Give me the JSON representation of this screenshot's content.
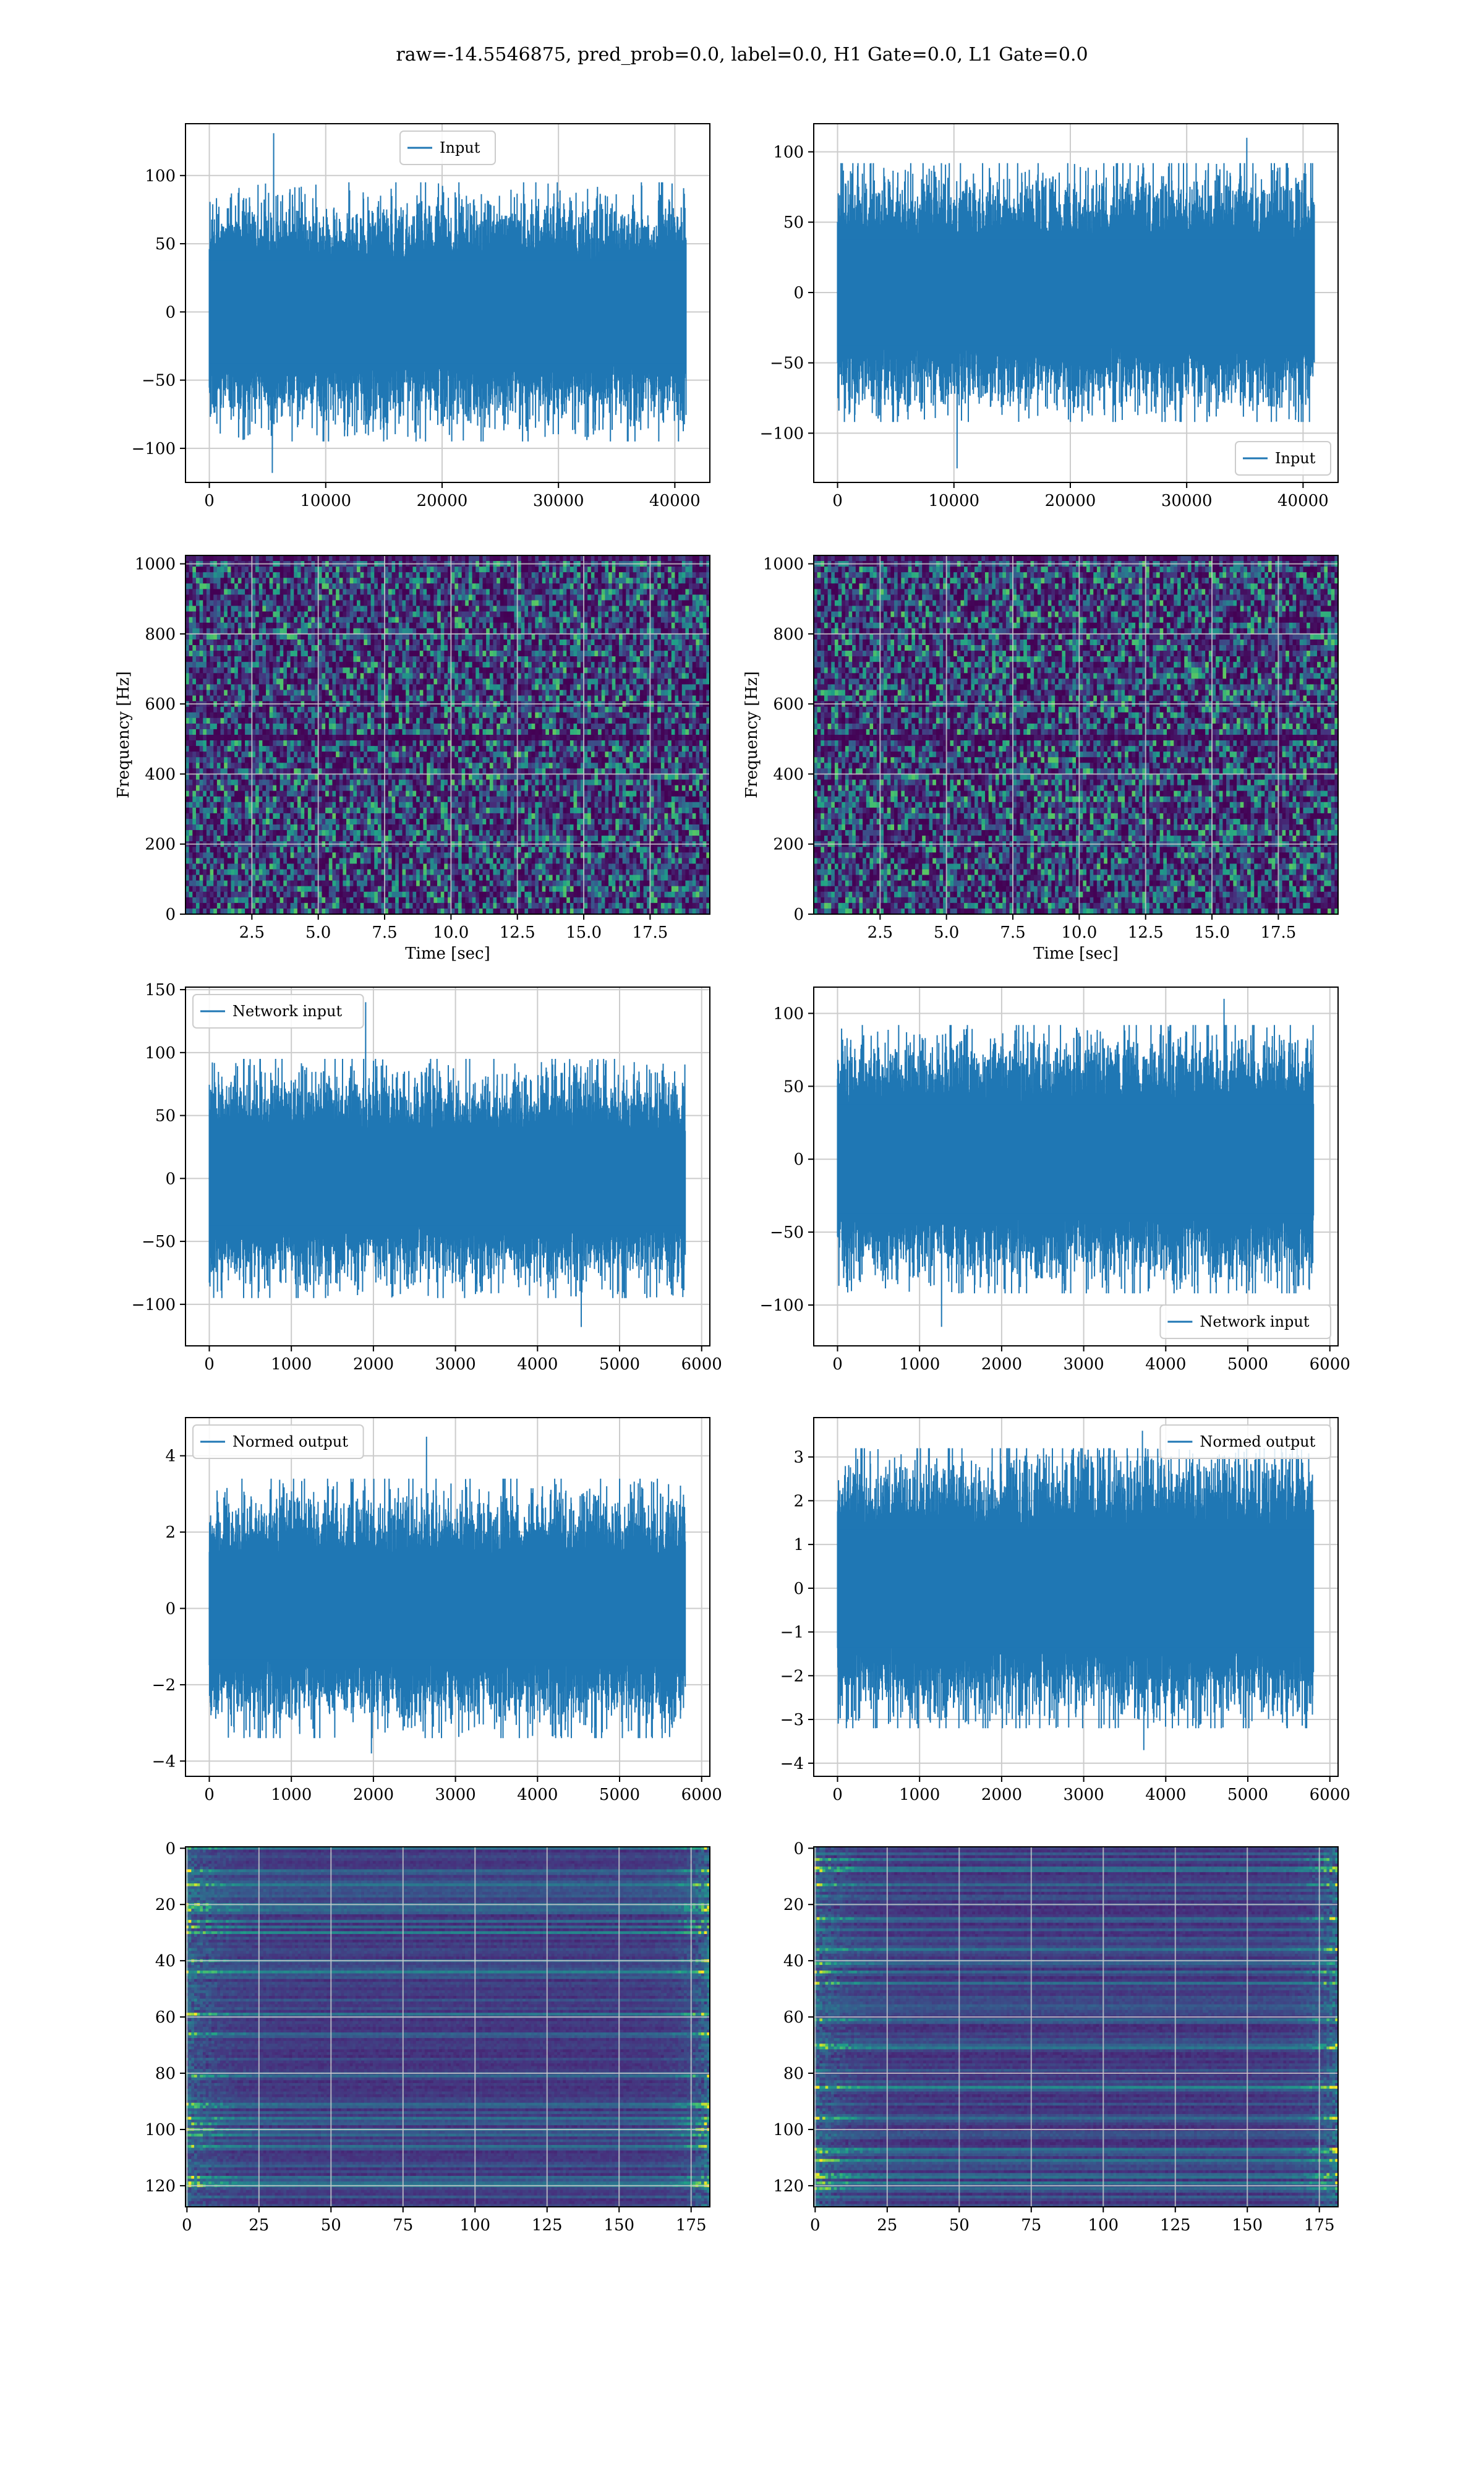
{
  "figure_title": "raw=-14.5546875, pred_prob=0.0, label=0.0, H1 Gate=0.0, L1 Gate=0.0",
  "colors": {
    "line": "#1f77b4",
    "grid": "#cccccc",
    "viridis": [
      "#440154",
      "#46327e",
      "#365c8d",
      "#277f8e",
      "#1fa187",
      "#4ac16d",
      "#a0da39",
      "#fde725"
    ]
  },
  "chart_data": [
    {
      "type": "line",
      "row": 1,
      "col": 1,
      "series": [
        {
          "name": "Input"
        }
      ],
      "legend": "upper center",
      "xlim": [
        -2048,
        43008
      ],
      "ylim": [
        -125,
        138
      ],
      "xticks": [
        0,
        10000,
        20000,
        30000,
        40000
      ],
      "yticks": [
        -100,
        -50,
        0,
        50,
        100
      ],
      "x_range": [
        0,
        40960
      ],
      "envelope": [
        -95,
        95
      ],
      "peaks": [
        131,
        -118
      ],
      "noise_scale": 25
    },
    {
      "type": "line",
      "row": 1,
      "col": 2,
      "series": [
        {
          "name": "Input"
        }
      ],
      "legend": "lower right",
      "xlim": [
        -2048,
        43008
      ],
      "ylim": [
        -135,
        120
      ],
      "xticks": [
        0,
        10000,
        20000,
        30000,
        40000
      ],
      "yticks": [
        -100,
        -50,
        0,
        50,
        100
      ],
      "x_range": [
        0,
        40960
      ],
      "envelope": [
        -92,
        92
      ],
      "peaks": [
        110,
        -125
      ],
      "noise_scale": 25
    },
    {
      "type": "heatmap",
      "row": 2,
      "col": 1,
      "xlabel": "Time [sec]",
      "ylabel": "Frequency [Hz]",
      "xlim": [
        0,
        19.75
      ],
      "ylim": [
        0,
        1024
      ],
      "xticks": [
        2.5,
        5.0,
        7.5,
        10.0,
        12.5,
        15.0,
        17.5
      ],
      "yticks": [
        0,
        200,
        400,
        600,
        800,
        1000
      ],
      "dark_band_hz": 500
    },
    {
      "type": "heatmap",
      "row": 2,
      "col": 2,
      "xlabel": "Time [sec]",
      "ylabel": "Frequency [Hz]",
      "xlim": [
        0,
        19.75
      ],
      "ylim": [
        0,
        1024
      ],
      "xticks": [
        2.5,
        5.0,
        7.5,
        10.0,
        12.5,
        15.0,
        17.5
      ],
      "yticks": [
        0,
        200,
        400,
        600,
        800,
        1000
      ],
      "dark_band_hz": 500
    },
    {
      "type": "line",
      "row": 3,
      "col": 1,
      "series": [
        {
          "name": "Network input"
        }
      ],
      "legend": "upper left",
      "xlim": [
        -290,
        6100
      ],
      "ylim": [
        -133,
        152
      ],
      "xticks": [
        0,
        1000,
        2000,
        3000,
        4000,
        5000,
        6000
      ],
      "yticks": [
        -100,
        -50,
        0,
        50,
        100,
        150
      ],
      "x_range": [
        0,
        5800
      ],
      "envelope": [
        -95,
        95
      ],
      "peaks": [
        140,
        -118
      ],
      "noise_scale": 25
    },
    {
      "type": "line",
      "row": 3,
      "col": 2,
      "series": [
        {
          "name": "Network input"
        }
      ],
      "legend": "lower right",
      "xlim": [
        -290,
        6100
      ],
      "ylim": [
        -128,
        118
      ],
      "xticks": [
        0,
        1000,
        2000,
        3000,
        4000,
        5000,
        6000
      ],
      "yticks": [
        -100,
        -50,
        0,
        50,
        100
      ],
      "x_range": [
        0,
        5800
      ],
      "envelope": [
        -92,
        92
      ],
      "peaks": [
        110,
        -115
      ],
      "noise_scale": 25
    },
    {
      "type": "line",
      "row": 4,
      "col": 1,
      "series": [
        {
          "name": "Normed output"
        }
      ],
      "legend": "upper left",
      "xlim": [
        -290,
        6100
      ],
      "ylim": [
        -4.4,
        5.0
      ],
      "xticks": [
        0,
        1000,
        2000,
        3000,
        4000,
        5000,
        6000
      ],
      "yticks": [
        -4,
        -2,
        0,
        2,
        4
      ],
      "x_range": [
        0,
        5800
      ],
      "envelope": [
        -3.4,
        3.4
      ],
      "peaks": [
        4.5,
        -3.8
      ],
      "noise_scale": 0.9
    },
    {
      "type": "line",
      "row": 4,
      "col": 2,
      "series": [
        {
          "name": "Normed output"
        }
      ],
      "legend": "upper right",
      "xlim": [
        -290,
        6100
      ],
      "ylim": [
        -4.3,
        3.9
      ],
      "xticks": [
        0,
        1000,
        2000,
        3000,
        4000,
        5000,
        6000
      ],
      "yticks": [
        -4,
        -3,
        -2,
        -1,
        0,
        1,
        2,
        3
      ],
      "x_range": [
        0,
        5800
      ],
      "envelope": [
        -3.2,
        3.2
      ],
      "peaks": [
        3.6,
        -3.7
      ],
      "noise_scale": 0.9
    },
    {
      "type": "heatmap",
      "row": 5,
      "col": 1,
      "xlim": [
        -0.5,
        181.5
      ],
      "ylim": [
        127.5,
        -0.5
      ],
      "xticks": [
        0,
        25,
        50,
        75,
        100,
        125,
        150,
        175
      ],
      "yticks": [
        0,
        20,
        40,
        60,
        80,
        100,
        120
      ],
      "rows": 128,
      "cols": 182
    },
    {
      "type": "heatmap",
      "row": 5,
      "col": 2,
      "xlim": [
        -0.5,
        181.5
      ],
      "ylim": [
        127.5,
        -0.5
      ],
      "xticks": [
        0,
        25,
        50,
        75,
        100,
        125,
        150,
        175
      ],
      "yticks": [
        0,
        20,
        40,
        60,
        80,
        100,
        120
      ],
      "rows": 128,
      "cols": 182
    }
  ]
}
